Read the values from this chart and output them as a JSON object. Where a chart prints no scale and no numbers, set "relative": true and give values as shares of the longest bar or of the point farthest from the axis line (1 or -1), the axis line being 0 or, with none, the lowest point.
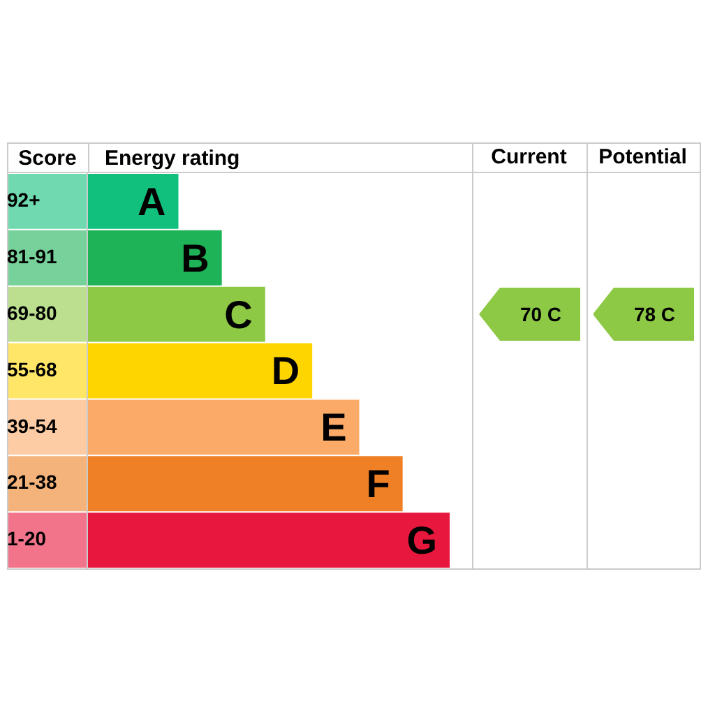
{
  "chart_data": [
    {
      "type": "bar",
      "orientation": "horizontal",
      "relative": true,
      "xlabel": "Energy rating",
      "ylabel": "Score",
      "categories": [
        "92+",
        "81-91",
        "69-80",
        "55-68",
        "39-54",
        "21-38",
        "1-20"
      ],
      "values": [
        0.25,
        0.37,
        0.49,
        0.62,
        0.75,
        0.87,
        1
      ],
      "colors": [
        "#10c07c",
        "#1db356",
        "#8dc945",
        "#ffd500",
        "#fbaa68",
        "#ef8025",
        "#e8173d"
      ],
      "annotations": [
        {
          "text": "A",
          "x": 0.25,
          "y": "92+"
        },
        {
          "text": "B",
          "x": 0.37,
          "y": "81-91"
        },
        {
          "text": "C",
          "x": 0.49,
          "y": "69-80"
        },
        {
          "text": "D",
          "x": 0.62,
          "y": "55-68"
        },
        {
          "text": "E",
          "x": 0.75,
          "y": "39-54"
        },
        {
          "text": "F",
          "x": 0.87,
          "y": "21-38"
        },
        {
          "text": "G",
          "x": 1,
          "y": "1-20"
        }
      ]
    },
    {
      "type": "other",
      "categories": [
        "Current",
        "Potential"
      ],
      "annotations": [
        "70 C",
        "78 C"
      ],
      "color": "#8dc945"
    }
  ]
}
